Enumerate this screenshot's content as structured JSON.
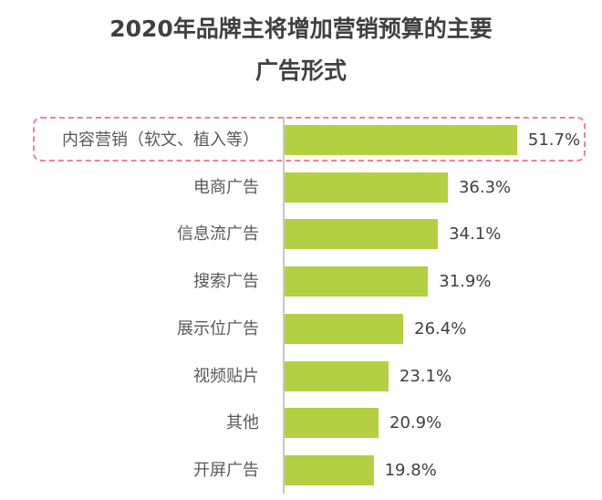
{
  "title": {
    "line1": "2020年品牌主将增加营销预算的主要",
    "line2": "广告形式"
  },
  "colors": {
    "bar": "#b3d043",
    "highlight_border": "#f0838d",
    "axis": "#c8c8c8",
    "title": "#404040",
    "label": "#595959"
  },
  "rows": [
    {
      "label": "内容营销（软文、植入等）",
      "value": 51.7,
      "display": "51.7%"
    },
    {
      "label": "电商广告",
      "value": 36.3,
      "display": "36.3%"
    },
    {
      "label": "信息流广告",
      "value": 34.1,
      "display": "34.1%"
    },
    {
      "label": "搜索广告",
      "value": 31.9,
      "display": "31.9%"
    },
    {
      "label": "展示位广告",
      "value": 26.4,
      "display": "26.4%"
    },
    {
      "label": "视频贴片",
      "value": 23.1,
      "display": "23.1%"
    },
    {
      "label": "其他",
      "value": 20.9,
      "display": "20.9%"
    },
    {
      "label": "开屏广告",
      "value": 19.8,
      "display": "19.8%"
    }
  ],
  "chart_data": {
    "type": "bar",
    "orientation": "horizontal",
    "title": "2020年品牌主将增加营销预算的主要广告形式",
    "categories": [
      "内容营销（软文、植入等）",
      "电商广告",
      "信息流广告",
      "搜索广告",
      "展示位广告",
      "视频贴片",
      "其他",
      "开屏广告"
    ],
    "values": [
      51.7,
      36.3,
      34.1,
      31.9,
      26.4,
      23.1,
      20.9,
      19.8
    ],
    "value_format": "percent",
    "xlabel": "",
    "ylabel": "",
    "grid": false,
    "legend": false,
    "annotations": [
      "内容营销（软文、植入等） row highlighted with dashed rounded box"
    ]
  }
}
